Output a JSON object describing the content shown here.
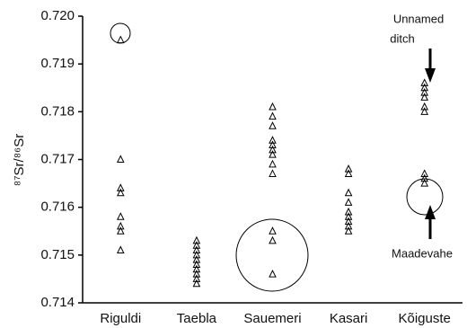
{
  "chart_data": {
    "type": "strip",
    "ylabel": "⁸⁷Sr/⁸⁶Sr",
    "categories": [
      "Riguldi",
      "Taebla",
      "Sauemeri",
      "Kasari",
      "Kõiguste"
    ],
    "values": [
      [
        0.7195,
        0.717,
        0.7164,
        0.7163,
        0.7158,
        0.7156,
        0.7155,
        0.7151
      ],
      [
        0.7153,
        0.7152,
        0.7151,
        0.715,
        0.7149,
        0.7148,
        0.7147,
        0.7146,
        0.7145,
        0.7144
      ],
      [
        0.7181,
        0.7179,
        0.7177,
        0.7174,
        0.7173,
        0.7172,
        0.7171,
        0.7169,
        0.7167,
        0.7155,
        0.7153,
        0.7146
      ],
      [
        0.7168,
        0.7167,
        0.7163,
        0.7161,
        0.7159,
        0.7158,
        0.7157,
        0.7156,
        0.7155
      ],
      [
        0.7186,
        0.7185,
        0.7184,
        0.7183,
        0.7181,
        0.718,
        0.7167,
        0.7166,
        0.7165
      ]
    ],
    "color": "#000000",
    "ylim": [
      0.714,
      0.72
    ],
    "yticks": [
      {
        "value": 0.714,
        "label": "0.714"
      },
      {
        "value": 0.715,
        "label": "0.715"
      },
      {
        "value": 0.716,
        "label": "0.716"
      },
      {
        "value": 0.717,
        "label": "0.717"
      },
      {
        "value": 0.718,
        "label": "0.718"
      },
      {
        "value": 0.719,
        "label": "0.719"
      },
      {
        "value": 0.72,
        "label": "0.720"
      }
    ],
    "annotations": [
      "Unnamed",
      "ditch",
      "Maadevahe"
    ]
  }
}
